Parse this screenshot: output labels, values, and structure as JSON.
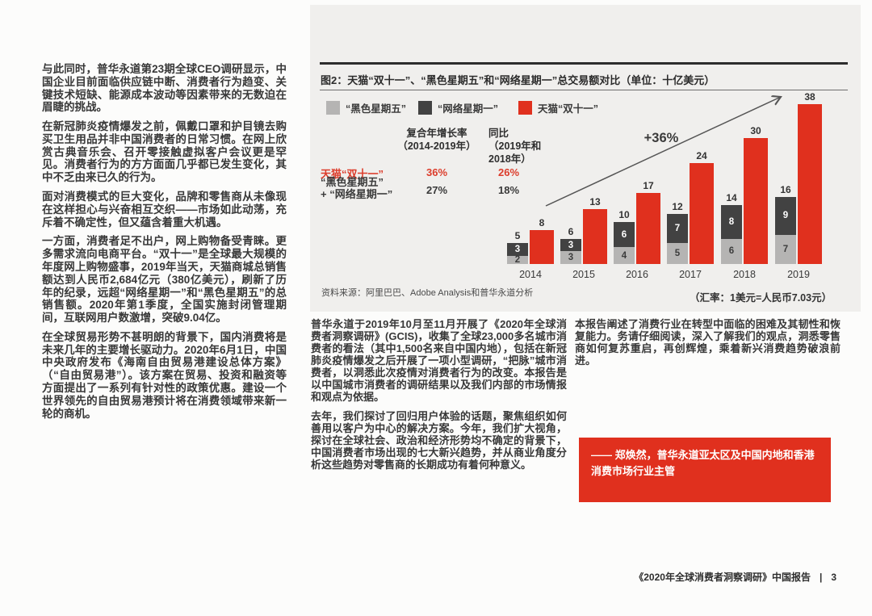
{
  "left_column": {
    "paragraphs": [
      "与此同时，普华永道第23期全球CEO调研显示，中国企业目前面临供应链中断、消费者行为趋变、关键技术短缺、能源成本波动等因素带来的无数迫在眉睫的挑战。",
      "在新冠肺炎疫情爆发之前，佩戴口罩和护目镜去购买卫生用品并非中国消费者的日常习惯。在网上欣赏古典音乐会、召开零接触虚拟客户会议更是罕见。消费者行为的方方面面几乎都已发生变化，其中不乏由来已久的行为。",
      "面对消费模式的巨大变化，品牌和零售商从未像现在这样担心与兴奋相互交织——市场如此动荡，充斥着不确定性，但又蕴含着重大机遇。",
      "一方面，消费者足不出户，网上购物备受青睐。更多需求流向电商平台。“双十一”是全球最大规模的年度网上购物盛事，2019年当天，天猫商城总销售额达到人民币2,684亿元（380亿美元），刷新了历年的纪录，远超“网络星期一”和“黑色星期五”的总销售额。2020年第1季度，全国实施封闭管理期间，互联网用户数激增，突破9.04亿。",
      "在全球贸易形势不甚明朗的背景下，国内消费将是未来几年的主要增长驱动力。2020年6月1日，中国中央政府发布《海南自由贸易港建设总体方案》（“自由贸易港”）。该方案在贸易、投资和融资等方面提出了一系列有针对性的政策优惠。建设一个世界领先的自由贸易港预计将在消费领域带来新一轮的商机。"
    ]
  },
  "chart": {
    "title": "图2：天猫“双十一”、“黑色星期五”和“网络星期一”总交易额对比（单位：十亿美元）",
    "legend": [
      {
        "label": "“黑色星期五”",
        "color": "#b5b4b3"
      },
      {
        "label": "“网络星期一”",
        "color": "#424242"
      },
      {
        "label": "天猫“双十一”",
        "color": "#e0301e"
      }
    ],
    "growth_table": {
      "col1_header": "复合年增长率\n（2014-2019年）",
      "col2_header": "同比\n（2019年和\n2018年）",
      "row1": {
        "label": "天猫“双十一”",
        "cagr": "36%",
        "yoy": "26%"
      },
      "row2": {
        "label": "“黑色星期五”\n+ “网络星期一”",
        "cagr": "27%",
        "yoy": "18%"
      }
    },
    "annotation": "+36%",
    "source": "资料来源：阿里巴巴、Adobe Analysis和普华永道分析",
    "exchange_note": "（汇率：1美元=人民币7.03元）"
  },
  "chart_data": {
    "type": "bar",
    "title": "图2：天猫“双十一”、“黑色星期五”和“网络星期一”总交易额对比（单位：十亿美元）",
    "categories": [
      "2014",
      "2015",
      "2016",
      "2017",
      "2018",
      "2019"
    ],
    "series": [
      {
        "name": "“黑色星期五”",
        "values": [
          2,
          3,
          4,
          5,
          6,
          7
        ],
        "color": "#b5b4b3",
        "stack": "us-holidays"
      },
      {
        "name": "“网络星期一”",
        "values": [
          3,
          3,
          6,
          7,
          8,
          9
        ],
        "color": "#424242",
        "stack": "us-holidays"
      },
      {
        "name": "天猫“双十一”",
        "values": [
          8,
          13,
          17,
          24,
          30,
          38
        ],
        "color": "#e0301e"
      }
    ],
    "stack_totals": [
      5,
      6,
      10,
      12,
      14,
      16
    ],
    "unit": "十亿美元",
    "ylim": [
      0,
      40
    ],
    "grid": false,
    "legend_position": "top-left",
    "annotations": [
      {
        "text": "+36%",
        "note": "天猫双十一 2014-2019 复合年增长率箭头"
      }
    ],
    "cagr_2014_2019": {
      "天猫双十一": "36%",
      "黑色星期五+网络星期一": "27%"
    },
    "yoy_2019_vs_2018": {
      "天猫双十一": "26%",
      "黑色星期五+网络星期一": "18%"
    }
  },
  "mid_column": {
    "paragraphs": [
      "普华永道于2019年10月至11月开展了《2020年全球消费者洞察调研》(GCIS)，收集了全球23,000多名城市消费者的看法（其中1,500名来自中国内地），包括在新冠肺炎疫情爆发之后开展了一项小型调研，“把脉”城市消费者，以洞悉此次疫情对消费者行为的改变。本报告是以中国城市消费者的调研结果以及我们内部的市场情报和观点为依据。",
      "去年，我们探讨了回归用户体验的话题，聚焦组织如何善用以客户为中心的解决方案。今年，我们扩大视角，探讨在全球社会、政治和经济形势均不确定的背景下，中国消费者市场出现的七大新兴趋势，并从商业角度分析这些趋势对零售商的长期成功有着何种意义。"
    ]
  },
  "right_column": {
    "paragraph": "本报告阐述了消费行业在转型中面临的困难及其韧性和恢复能力。务请仔细阅读，深入了解我们的观点，洞悉零售商如何复苏重启，再创辉煌，乘着新兴消费趋势破浪前进。",
    "quote": "—— 郑焕然，普华永道亚太区及中国内地和香港消费市场行业主管",
    "quote_bg": "#e0301e"
  },
  "footer": {
    "report_title": "《2020年全球消费者洞察调研》中国报告",
    "separator": "|",
    "page_number": "3"
  },
  "colors": {
    "brand_red": "#e0301e",
    "dark_gray_bar": "#424242",
    "light_gray_bar": "#b5b4b3",
    "panel_bg": "#f0efed"
  }
}
